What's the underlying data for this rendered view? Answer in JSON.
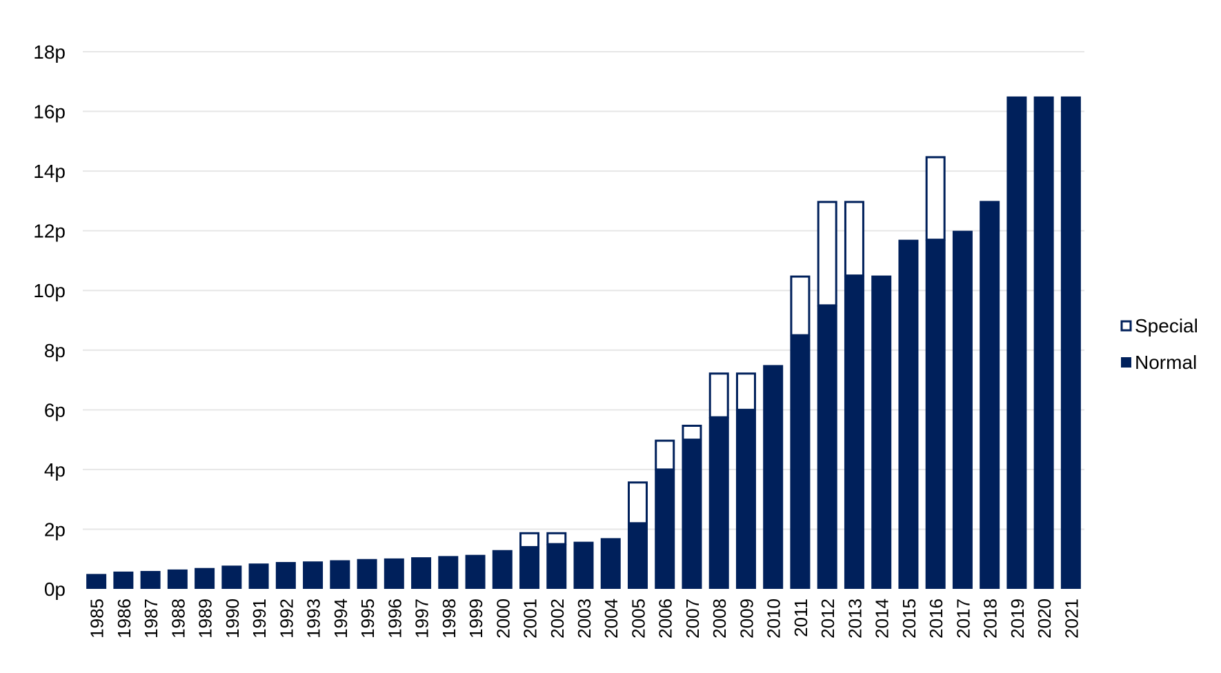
{
  "chart_data": {
    "type": "bar",
    "stacked": true,
    "categories": [
      "1985",
      "1986",
      "1987",
      "1988",
      "1989",
      "1990",
      "1991",
      "1992",
      "1993",
      "1994",
      "1995",
      "1996",
      "1997",
      "1998",
      "1999",
      "2000",
      "2001",
      "2002",
      "2003",
      "2004",
      "2005",
      "2006",
      "2007",
      "2008",
      "2009",
      "2010",
      "2011",
      "2012",
      "2013",
      "2014",
      "2015",
      "2016",
      "2017",
      "2018",
      "2019",
      "2020",
      "2021"
    ],
    "series": [
      {
        "name": "Normal",
        "color": "#00205b",
        "fill": "solid",
        "values": [
          0.5,
          0.58,
          0.6,
          0.65,
          0.7,
          0.78,
          0.85,
          0.9,
          0.92,
          0.96,
          1.0,
          1.02,
          1.06,
          1.1,
          1.14,
          1.3,
          1.4,
          1.5,
          1.58,
          1.7,
          2.2,
          4.0,
          5.0,
          5.75,
          6.0,
          7.5,
          8.5,
          9.5,
          10.5,
          10.5,
          11.7,
          11.7,
          12.0,
          13.0,
          16.5,
          16.5,
          16.5
        ]
      },
      {
        "name": "Special",
        "color": "#00205b",
        "fill": "outline",
        "values": [
          0,
          0,
          0,
          0,
          0,
          0,
          0,
          0,
          0,
          0,
          0,
          0,
          0,
          0,
          0,
          0,
          0.5,
          0.4,
          0,
          0,
          1.4,
          1.0,
          0.5,
          1.5,
          1.25,
          0,
          2.0,
          3.5,
          2.5,
          0,
          0,
          2.8,
          0,
          0,
          0,
          0,
          0
        ]
      }
    ],
    "ylim": [
      0,
      18
    ],
    "yticks": [
      0,
      2,
      4,
      6,
      8,
      10,
      12,
      14,
      16,
      18
    ],
    "ytick_labels": [
      "0p",
      "2p",
      "4p",
      "6p",
      "8p",
      "10p",
      "12p",
      "14p",
      "16p",
      "18p"
    ],
    "grid": "horizontal",
    "legend": {
      "placement": "right",
      "order": [
        "Special",
        "Normal"
      ]
    },
    "x_tick_rotation": "vertical",
    "gridline_color": "#e6e6e6",
    "text_color": "#000000"
  }
}
